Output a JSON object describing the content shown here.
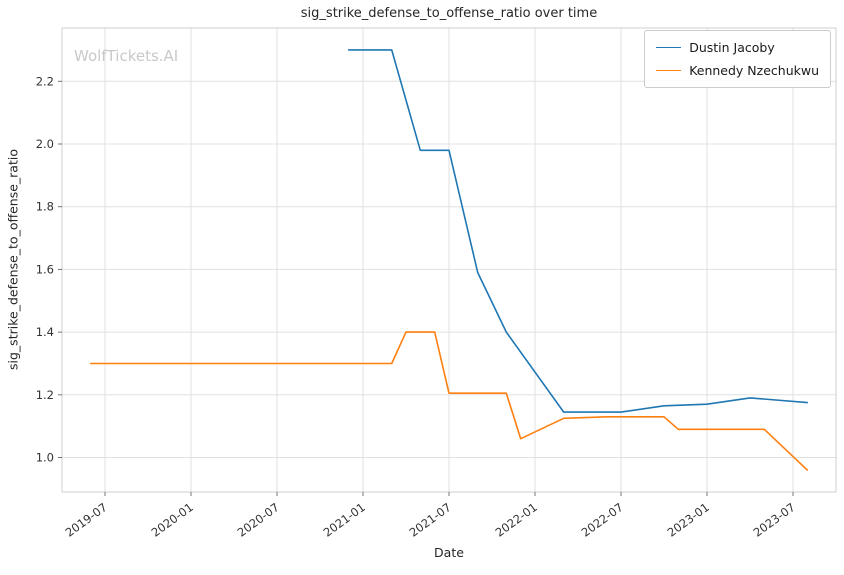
{
  "watermark": "WolfTickets.AI",
  "chart_data": {
    "type": "line",
    "title": "sig_strike_defense_to_offense_ratio over time",
    "xlabel": "Date",
    "ylabel": "sig_strike_defense_to_offense_ratio",
    "x_ticks": [
      "2019-07",
      "2020-01",
      "2020-07",
      "2021-01",
      "2021-07",
      "2022-01",
      "2022-07",
      "2023-01",
      "2023-07"
    ],
    "y_ticks": [
      "1.0",
      "1.2",
      "1.4",
      "1.6",
      "1.8",
      "2.0",
      "2.2"
    ],
    "xlim": [
      "2019-04",
      "2023-10"
    ],
    "ylim": [
      0.89,
      2.37
    ],
    "grid": true,
    "legend_position": "upper right",
    "colors": {
      "grid": "#e0e0e0",
      "spine": "#cfcfcf",
      "tick": "#666666",
      "tick_label": "#333333"
    },
    "series": [
      {
        "name": "Dustin Jacoby",
        "color": "#1f77b4",
        "points": [
          [
            "2020-12",
            2.3
          ],
          [
            "2021-03",
            2.3
          ],
          [
            "2021-05",
            1.98
          ],
          [
            "2021-07",
            1.98
          ],
          [
            "2021-09",
            1.59
          ],
          [
            "2021-11",
            1.4
          ],
          [
            "2022-03",
            1.145
          ],
          [
            "2022-07",
            1.145
          ],
          [
            "2022-10",
            1.165
          ],
          [
            "2023-01",
            1.17
          ],
          [
            "2023-04",
            1.19
          ],
          [
            "2023-08",
            1.175
          ]
        ]
      },
      {
        "name": "Kennedy Nzechukwu",
        "color": "#ff7f0e",
        "points": [
          [
            "2019-06",
            1.3
          ],
          [
            "2021-03",
            1.3
          ],
          [
            "2021-04",
            1.4
          ],
          [
            "2021-06",
            1.4
          ],
          [
            "2021-07",
            1.205
          ],
          [
            "2021-11",
            1.205
          ],
          [
            "2021-12",
            1.06
          ],
          [
            "2022-03",
            1.125
          ],
          [
            "2022-06",
            1.13
          ],
          [
            "2022-10",
            1.13
          ],
          [
            "2022-11",
            1.09
          ],
          [
            "2023-05",
            1.09
          ],
          [
            "2023-08",
            0.96
          ]
        ]
      }
    ]
  }
}
